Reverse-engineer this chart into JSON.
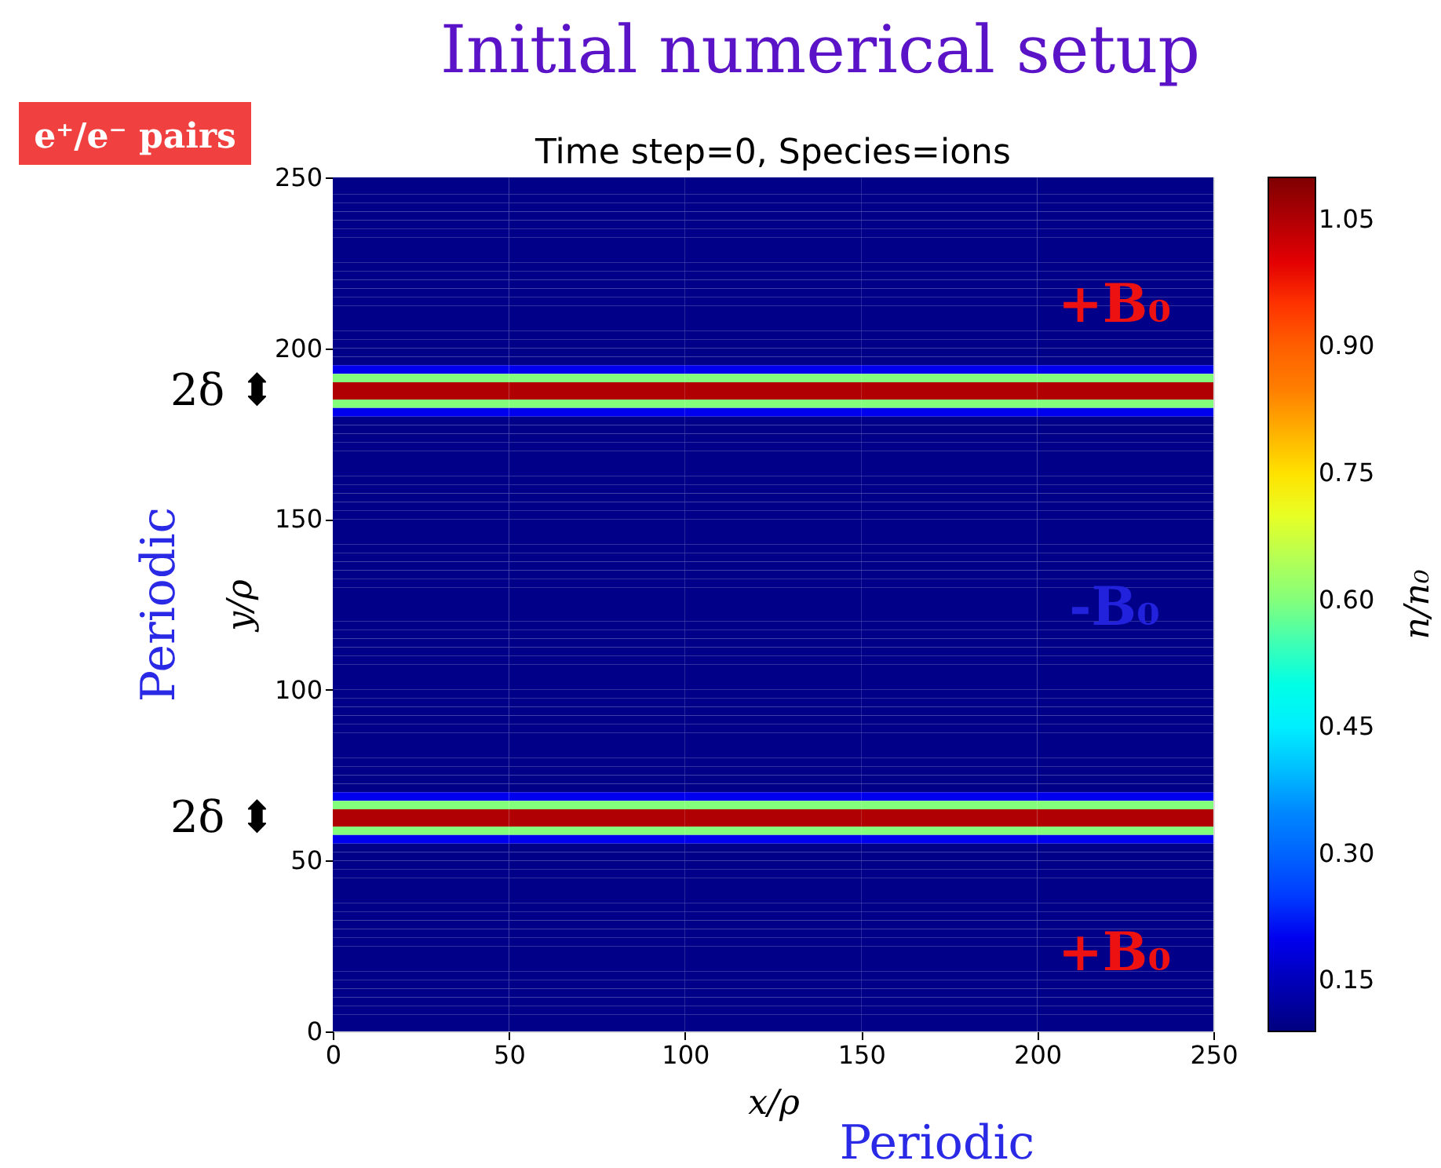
{
  "chart_data": {
    "type": "heatmap",
    "title": "Initial numerical setup",
    "subtitle": "Time step=0, Species=ions",
    "xlabel": "x/ρ",
    "ylabel": "y/ρ",
    "clabel": "n/n₀",
    "x": [
      25,
      75,
      125,
      175,
      225
    ],
    "xlim": [
      0,
      250
    ],
    "ylim": [
      0,
      250
    ],
    "xticks": [
      0,
      50,
      100,
      150,
      200,
      250
    ],
    "yticks": [
      0,
      50,
      100,
      150,
      200,
      250
    ],
    "clim": [
      0.09,
      1.1
    ],
    "cticks": [
      0.15,
      {
        "value": 0.3,
        "label": "0.30"
      },
      0.45,
      {
        "value": 0.6,
        "label": "0.60"
      },
      0.75,
      {
        "value": 0.9,
        "label": "0.90"
      },
      1.05
    ],
    "grid": false,
    "cells": [
      [
        0.1,
        0.1,
        0.1,
        0.1,
        0.1
      ],
      [
        0.1,
        0.1,
        0.1,
        0.1,
        0.1
      ],
      [
        0.1,
        0.1,
        0.1,
        0.1,
        0.1
      ],
      [
        0.1,
        0.1,
        0.1,
        0.1,
        0.1
      ],
      [
        0.1,
        0.1,
        0.1,
        0.1,
        0.1
      ],
      [
        0.1,
        0.1,
        0.1,
        0.1,
        0.1
      ],
      [
        0.1,
        0.1,
        0.1,
        0.1,
        0.1
      ],
      [
        0.1,
        0.1,
        0.1,
        0.1,
        0.1
      ],
      [
        0.1,
        0.1,
        0.1,
        0.1,
        0.1
      ],
      [
        0.1,
        0.1,
        0.1,
        0.1,
        0.1
      ],
      [
        0.1,
        0.1,
        0.1,
        0.1,
        0.1
      ],
      [
        0.1,
        0.1,
        0.1,
        0.1,
        0.1
      ],
      [
        0.1,
        0.1,
        0.1,
        0.1,
        0.1
      ],
      [
        0.1,
        0.1,
        0.1,
        0.1,
        0.1
      ],
      [
        0.1,
        0.1,
        0.1,
        0.1,
        0.1
      ],
      [
        0.1,
        0.1,
        0.1,
        0.1,
        0.1
      ],
      [
        0.1,
        0.1,
        0.1,
        0.1,
        0.1
      ],
      [
        0.1,
        0.1,
        0.1,
        0.1,
        0.1
      ],
      [
        0.1,
        0.1,
        0.1,
        0.1,
        0.1
      ],
      [
        0.1,
        0.1,
        0.1,
        0.1,
        0.1
      ],
      [
        0.1,
        0.1,
        0.1,
        0.1,
        0.1
      ],
      [
        0.1,
        0.1,
        0.1,
        0.1,
        0.1
      ],
      [
        0.2,
        0.2,
        0.2,
        0.2,
        0.2
      ],
      [
        0.6,
        0.6,
        0.6,
        0.6,
        0.6
      ],
      [
        1.05,
        1.05,
        1.05,
        1.05,
        1.05
      ],
      [
        1.05,
        1.05,
        1.05,
        1.05,
        1.05
      ],
      [
        0.6,
        0.6,
        0.6,
        0.6,
        0.6
      ],
      [
        0.2,
        0.2,
        0.2,
        0.2,
        0.2
      ],
      [
        0.1,
        0.1,
        0.1,
        0.1,
        0.1
      ],
      [
        0.1,
        0.1,
        0.1,
        0.1,
        0.1
      ],
      [
        0.1,
        0.1,
        0.1,
        0.1,
        0.1
      ],
      [
        0.1,
        0.1,
        0.1,
        0.1,
        0.1
      ],
      [
        0.1,
        0.1,
        0.1,
        0.1,
        0.1
      ],
      [
        0.1,
        0.1,
        0.1,
        0.1,
        0.1
      ],
      [
        0.1,
        0.1,
        0.1,
        0.1,
        0.1
      ],
      [
        0.1,
        0.1,
        0.1,
        0.1,
        0.1
      ],
      [
        0.1,
        0.1,
        0.1,
        0.1,
        0.1
      ],
      [
        0.1,
        0.1,
        0.1,
        0.1,
        0.1
      ],
      [
        0.1,
        0.1,
        0.1,
        0.1,
        0.1
      ],
      [
        0.1,
        0.1,
        0.1,
        0.1,
        0.1
      ],
      [
        0.1,
        0.1,
        0.1,
        0.1,
        0.1
      ],
      [
        0.1,
        0.1,
        0.1,
        0.1,
        0.1
      ],
      [
        0.1,
        0.1,
        0.1,
        0.1,
        0.1
      ],
      [
        0.1,
        0.1,
        0.1,
        0.1,
        0.1
      ],
      [
        0.1,
        0.1,
        0.1,
        0.1,
        0.1
      ],
      [
        0.1,
        0.1,
        0.1,
        0.1,
        0.1
      ],
      [
        0.1,
        0.1,
        0.1,
        0.1,
        0.1
      ],
      [
        0.1,
        0.1,
        0.1,
        0.1,
        0.1
      ],
      [
        0.1,
        0.1,
        0.1,
        0.1,
        0.1
      ],
      [
        0.1,
        0.1,
        0.1,
        0.1,
        0.1
      ],
      [
        0.1,
        0.1,
        0.1,
        0.1,
        0.1
      ],
      [
        0.1,
        0.1,
        0.1,
        0.1,
        0.1
      ],
      [
        0.1,
        0.1,
        0.1,
        0.1,
        0.1
      ],
      [
        0.1,
        0.1,
        0.1,
        0.1,
        0.1
      ],
      [
        0.1,
        0.1,
        0.1,
        0.1,
        0.1
      ],
      [
        0.1,
        0.1,
        0.1,
        0.1,
        0.1
      ],
      [
        0.1,
        0.1,
        0.1,
        0.1,
        0.1
      ],
      [
        0.1,
        0.1,
        0.1,
        0.1,
        0.1
      ],
      [
        0.1,
        0.1,
        0.1,
        0.1,
        0.1
      ],
      [
        0.1,
        0.1,
        0.1,
        0.1,
        0.1
      ],
      [
        0.1,
        0.1,
        0.1,
        0.1,
        0.1
      ],
      [
        0.1,
        0.1,
        0.1,
        0.1,
        0.1
      ],
      [
        0.1,
        0.1,
        0.1,
        0.1,
        0.1
      ],
      [
        0.1,
        0.1,
        0.1,
        0.1,
        0.1
      ],
      [
        0.1,
        0.1,
        0.1,
        0.1,
        0.1
      ],
      [
        0.1,
        0.1,
        0.1,
        0.1,
        0.1
      ],
      [
        0.1,
        0.1,
        0.1,
        0.1,
        0.1
      ],
      [
        0.1,
        0.1,
        0.1,
        0.1,
        0.1
      ],
      [
        0.1,
        0.1,
        0.1,
        0.1,
        0.1
      ],
      [
        0.1,
        0.1,
        0.1,
        0.1,
        0.1
      ],
      [
        0.1,
        0.1,
        0.1,
        0.1,
        0.1
      ],
      [
        0.1,
        0.1,
        0.1,
        0.1,
        0.1
      ],
      [
        0.2,
        0.2,
        0.2,
        0.2,
        0.2
      ],
      [
        0.6,
        0.6,
        0.6,
        0.6,
        0.6
      ],
      [
        1.05,
        1.05,
        1.05,
        1.05,
        1.05
      ],
      [
        1.05,
        1.05,
        1.05,
        1.05,
        1.05
      ],
      [
        0.6,
        0.6,
        0.6,
        0.6,
        0.6
      ],
      [
        0.2,
        0.2,
        0.2,
        0.2,
        0.2
      ],
      [
        0.1,
        0.1,
        0.1,
        0.1,
        0.1
      ],
      [
        0.1,
        0.1,
        0.1,
        0.1,
        0.1
      ],
      [
        0.1,
        0.1,
        0.1,
        0.1,
        0.1
      ],
      [
        0.1,
        0.1,
        0.1,
        0.1,
        0.1
      ],
      [
        0.1,
        0.1,
        0.1,
        0.1,
        0.1
      ],
      [
        0.1,
        0.1,
        0.1,
        0.1,
        0.1
      ],
      [
        0.1,
        0.1,
        0.1,
        0.1,
        0.1
      ],
      [
        0.1,
        0.1,
        0.1,
        0.1,
        0.1
      ],
      [
        0.1,
        0.1,
        0.1,
        0.1,
        0.1
      ],
      [
        0.1,
        0.1,
        0.1,
        0.1,
        0.1
      ],
      [
        0.1,
        0.1,
        0.1,
        0.1,
        0.1
      ],
      [
        0.1,
        0.1,
        0.1,
        0.1,
        0.1
      ],
      [
        0.1,
        0.1,
        0.1,
        0.1,
        0.1
      ],
      [
        0.1,
        0.1,
        0.1,
        0.1,
        0.1
      ],
      [
        0.1,
        0.1,
        0.1,
        0.1,
        0.1
      ],
      [
        0.1,
        0.1,
        0.1,
        0.1,
        0.1
      ],
      [
        0.1,
        0.1,
        0.1,
        0.1,
        0.1
      ],
      [
        0.1,
        0.1,
        0.1,
        0.1,
        0.1
      ],
      [
        0.1,
        0.1,
        0.1,
        0.1,
        0.1
      ],
      [
        0.1,
        0.1,
        0.1,
        0.1,
        0.1
      ],
      [
        0.1,
        0.1,
        0.1,
        0.1,
        0.1
      ],
      [
        0.1,
        0.1,
        0.1,
        0.1,
        0.1
      ]
    ],
    "annotations": [
      "+B₀",
      "-B₀",
      "+B₀",
      "2δ ⬍",
      "2δ ⬍",
      "Periodic",
      "Periodic",
      "e⁺/e⁻ pairs"
    ]
  }
}
